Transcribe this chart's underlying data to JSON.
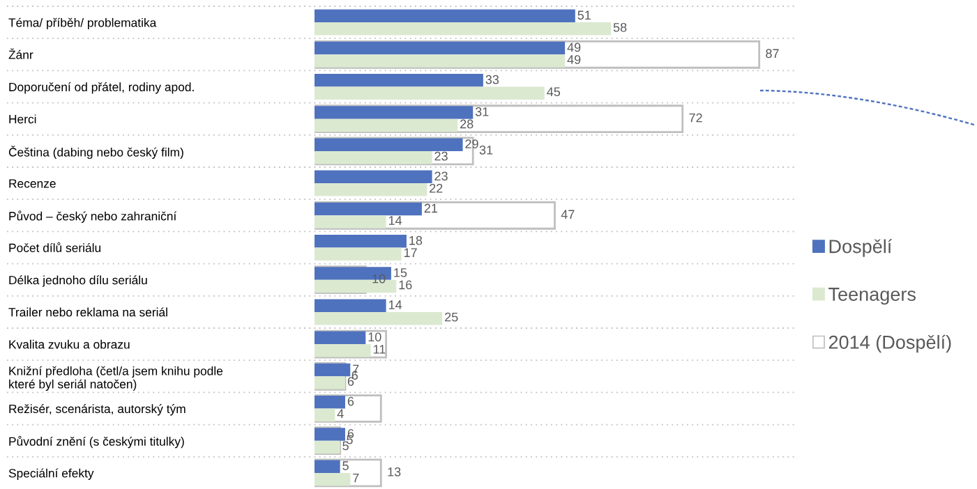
{
  "chart_data": {
    "type": "bar",
    "orientation": "horizontal",
    "categories": [
      "Téma/ příběh/ problematika",
      "Žánr",
      "Doporučení od přátel, rodiny apod.",
      "Herci",
      "Čeština (dabing nebo český film)",
      "Recenze",
      "Původ – český nebo zahraniční",
      "Počet dílů seriálu",
      "Délka jednoho dílu seriálu",
      "Trailer nebo reklama na seriál",
      "Kvalita zvuku a obrazu",
      "Knižní předloha (četl/a jsem knihu podle\nkteré byl seriál natočen)",
      "Režisér, scenárista, autorský tým",
      "Původní znění (s českými titulky)",
      "Speciální efekty"
    ],
    "series": [
      {
        "name": "2014 (Dospělí)",
        "color": "#ffffff",
        "values": [
          null,
          87,
          null,
          72,
          31,
          null,
          47,
          null,
          10,
          null,
          14,
          6,
          13,
          5,
          13
        ],
        "value_labels": [
          null,
          "87",
          null,
          "72",
          "31",
          null,
          "47",
          null,
          "10",
          null,
          null,
          "6",
          null,
          "5",
          "13"
        ]
      },
      {
        "name": "Dospělí",
        "color": "#4f72be",
        "values": [
          51,
          49,
          33,
          31,
          29,
          23,
          21,
          18,
          15,
          14,
          10,
          7,
          6,
          6,
          5
        ],
        "value_labels": [
          "51",
          "49",
          "33",
          "31",
          "29",
          "23",
          "21",
          "18",
          "15",
          "14",
          "10",
          "7",
          "6",
          "6",
          "5"
        ]
      },
      {
        "name": "Teenagers",
        "color": "#dbe9d0",
        "values": [
          58,
          49,
          45,
          28,
          23,
          22,
          14,
          17,
          16,
          25,
          11,
          6,
          4,
          5,
          7
        ],
        "value_labels": [
          "58",
          "49",
          "45",
          "28",
          "23",
          "22",
          "14",
          "17",
          "16",
          "25",
          "11",
          "6",
          "4",
          "5",
          "7"
        ]
      }
    ],
    "xlim": [
      0,
      94
    ],
    "tick_labels": "y",
    "grid": "y",
    "legend": "right"
  }
}
